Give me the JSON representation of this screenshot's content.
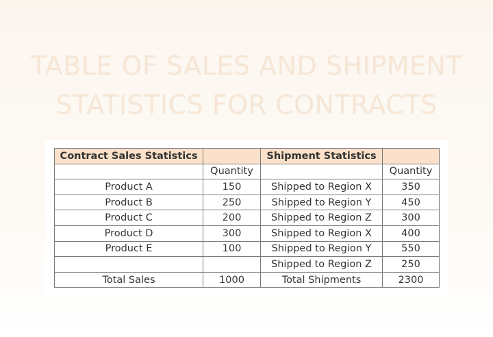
{
  "title": {
    "lines": [
      "TABLE OF SALES AND SHIPMENT",
      "STATISTICS FOR CONTRACTS"
    ]
  },
  "table": {
    "rows": [
      [
        "Contract Sales Statistics",
        null,
        "Shipment Statistics",
        null
      ],
      [
        null,
        "Quantity",
        null,
        "Quantity"
      ],
      [
        "Product A",
        150,
        "Shipped to Region X",
        350
      ],
      [
        "Product B",
        250,
        "Shipped to Region Y",
        450
      ],
      [
        "Product C",
        200,
        "Shipped to Region Z",
        300
      ],
      [
        "Product D",
        300,
        "Shipped to Region X",
        400
      ],
      [
        "Product E",
        100,
        "Shipped to Region Y",
        550
      ],
      [
        null,
        null,
        "Shipped to Region Z",
        250
      ],
      [
        "Total Sales",
        1000,
        "Total Shipments",
        2300
      ]
    ]
  }
}
